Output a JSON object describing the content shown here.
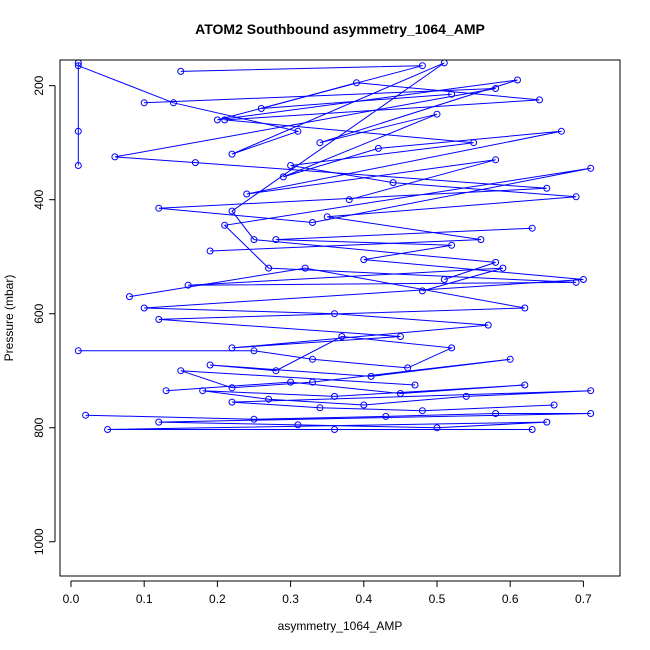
{
  "chart_data": {
    "type": "line",
    "title": "ATOM2 Southbound asymmetry_1064_AMP",
    "xlabel": "asymmetry_1064_AMP",
    "ylabel": "Pressure (mbar)",
    "xlim": [
      -0.015,
      0.75
    ],
    "ylim": [
      1060,
      155
    ],
    "y_reversed": true,
    "x_ticks": [
      0.0,
      0.1,
      0.2,
      0.3,
      0.4,
      0.5,
      0.6,
      0.7
    ],
    "x_tick_labels": [
      "0.0",
      "0.1",
      "0.2",
      "0.3",
      "0.4",
      "0.5",
      "0.6",
      "0.7"
    ],
    "y_ticks": [
      200,
      400,
      600,
      800,
      1000
    ],
    "y_tick_labels": [
      "200",
      "400",
      "600",
      "800",
      "1000"
    ],
    "grid": false,
    "legend": false,
    "marker": "open-circle",
    "series_color": "#0000ff",
    "series": [
      {
        "x": [
          0.01,
          0.01,
          0.01,
          0.01,
          0.14,
          0.31,
          0.22,
          0.51,
          0.22,
          0.25,
          0.58,
          0.51
        ],
        "y": [
          160,
          280,
          340,
          165,
          230,
          280,
          320,
          160,
          420,
          470,
          510,
          540
        ]
      },
      {
        "x": [
          0.1,
          0.58,
          0.06,
          0.17,
          0.65,
          0.12,
          0.33,
          0.71,
          0.21,
          0.27,
          0.69,
          0.16,
          0.59,
          0.48
        ],
        "y": [
          230,
          205,
          325,
          335,
          380,
          415,
          440,
          345,
          445,
          520,
          545,
          550,
          520,
          560
        ]
      },
      {
        "x": [
          0.08,
          0.32,
          0.62,
          0.12,
          0.45,
          0.22,
          0.57,
          0.36,
          0.1,
          0.7,
          0.4,
          0.52,
          0.28,
          0.63
        ],
        "y": [
          570,
          520,
          590,
          610,
          640,
          660,
          620,
          600,
          590,
          540,
          505,
          480,
          470,
          450
        ]
      },
      {
        "x": [
          0.01,
          0.25,
          0.33,
          0.46,
          0.52,
          0.37,
          0.28,
          0.19,
          0.41,
          0.6,
          0.33,
          0.22,
          0.15,
          0.47
        ],
        "y": [
          665,
          665,
          680,
          695,
          660,
          640,
          700,
          690,
          710,
          680,
          720,
          730,
          700,
          725
        ]
      },
      {
        "x": [
          0.13,
          0.3,
          0.45,
          0.62,
          0.36,
          0.18,
          0.27,
          0.4,
          0.54,
          0.71,
          0.22,
          0.34,
          0.48,
          0.66
        ],
        "y": [
          735,
          720,
          740,
          725,
          745,
          735,
          750,
          760,
          745,
          735,
          755,
          765,
          770,
          760
        ]
      },
      {
        "x": [
          0.02,
          0.25,
          0.43,
          0.58,
          0.71,
          0.12,
          0.31,
          0.5,
          0.65,
          0.05,
          0.36,
          0.63
        ],
        "y": [
          778,
          785,
          780,
          775,
          775,
          790,
          795,
          800,
          790,
          803,
          803,
          803
        ]
      },
      {
        "x": [
          0.15,
          0.48,
          0.2,
          0.61,
          0.34,
          0.5,
          0.29,
          0.42,
          0.67,
          0.24,
          0.58,
          0.38
        ],
        "y": [
          175,
          165,
          260,
          190,
          300,
          250,
          360,
          310,
          280,
          390,
          330,
          400
        ]
      },
      {
        "x": [
          0.52,
          0.26,
          0.39,
          0.64,
          0.21,
          0.55,
          0.3,
          0.44,
          0.69,
          0.35,
          0.56,
          0.19
        ],
        "y": [
          215,
          240,
          195,
          225,
          260,
          300,
          340,
          370,
          395,
          430,
          470,
          490
        ]
      }
    ]
  }
}
